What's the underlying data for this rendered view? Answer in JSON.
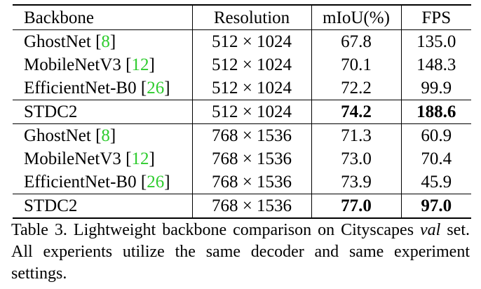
{
  "table": {
    "headers": [
      "Backbone",
      "Resolution",
      "mIoU(%)",
      "FPS"
    ],
    "rows": [
      {
        "name": "GhostNet",
        "ref": "8",
        "resolution": "512 × 1024",
        "miou": "67.8",
        "fps": "135.0",
        "bold": false
      },
      {
        "name": "MobileNetV3",
        "ref": "12",
        "resolution": "512 × 1024",
        "miou": "70.1",
        "fps": "148.3",
        "bold": false
      },
      {
        "name": "EfficientNet-B0",
        "ref": "26",
        "resolution": "512 × 1024",
        "miou": "72.2",
        "fps": "99.9",
        "bold": false
      },
      {
        "name": "STDC2",
        "ref": "",
        "resolution": "512 × 1024",
        "miou": "74.2",
        "fps": "188.6",
        "bold": true
      },
      {
        "name": "GhostNet",
        "ref": "8",
        "resolution": "768 × 1536",
        "miou": "71.3",
        "fps": "60.9",
        "bold": false
      },
      {
        "name": "MobileNetV3",
        "ref": "12",
        "resolution": "768 × 1536",
        "miou": "73.0",
        "fps": "70.4",
        "bold": false
      },
      {
        "name": "EfficientNet-B0",
        "ref": "26",
        "resolution": "768 × 1536",
        "miou": "73.9",
        "fps": "45.9",
        "bold": false
      },
      {
        "name": "STDC2",
        "ref": "",
        "resolution": "768 × 1536",
        "miou": "77.0",
        "fps": "97.0",
        "bold": true
      }
    ]
  },
  "caption": {
    "prefix": "Table 3. Lightweight backbone comparison on Cityscapes ",
    "italic": "val",
    "suffix": " set. All experients utilize the same decoder and same experiment settings."
  },
  "colors": {
    "citation": "#2ecc2e"
  }
}
